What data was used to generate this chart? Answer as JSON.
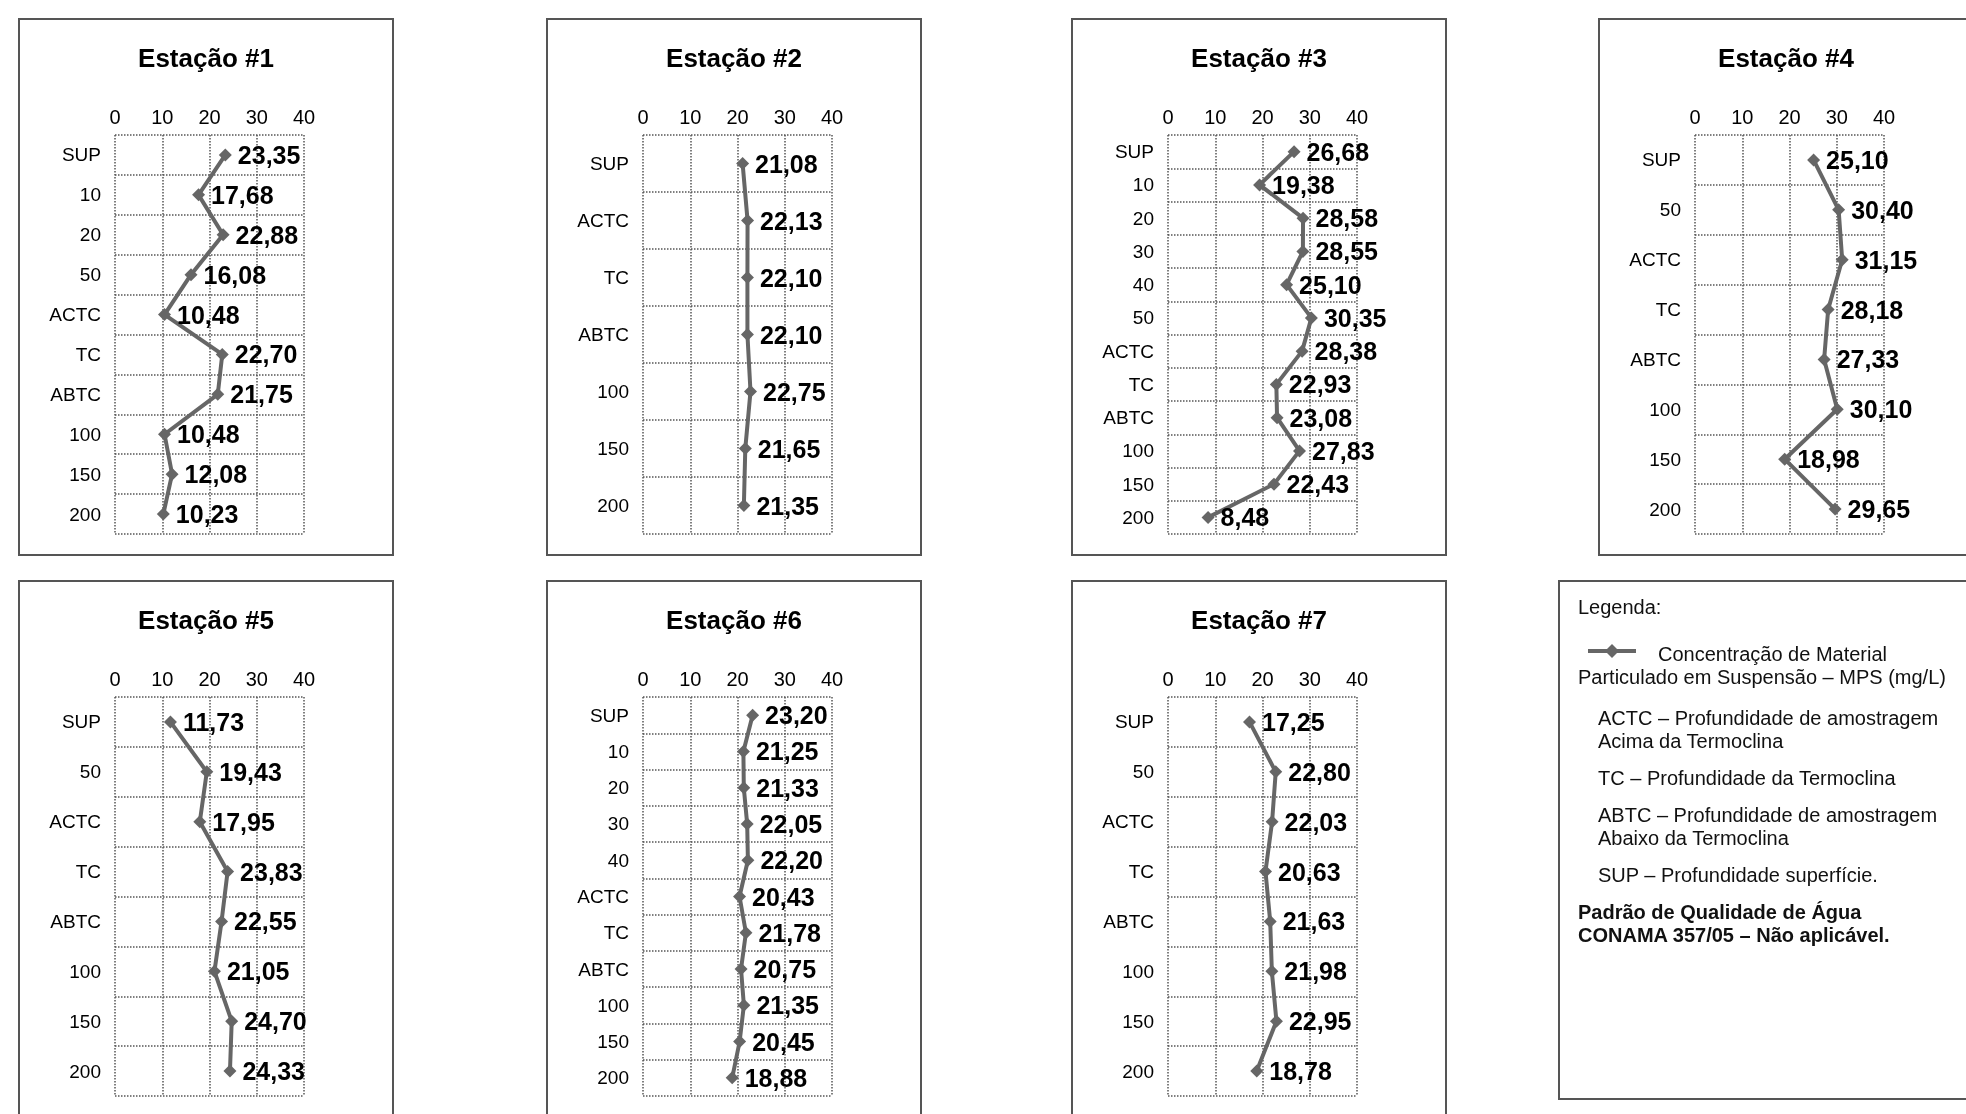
{
  "chart_data": [
    {
      "type": "line",
      "orientation": "horizontal",
      "title": "Estação #1",
      "categories": [
        "SUP",
        "10",
        "20",
        "50",
        "ACTC",
        "TC",
        "ABTC",
        "100",
        "150",
        "200"
      ],
      "values": [
        23.35,
        17.68,
        22.88,
        16.08,
        10.48,
        22.7,
        21.75,
        10.48,
        12.08,
        10.23
      ],
      "value_labels": [
        "23,35",
        "17,68",
        "22,88",
        "16,08",
        "10,48",
        "22,70",
        "21,75",
        "10,48",
        "12,08",
        "10,23"
      ],
      "color": "#666666",
      "xlim": [
        0,
        40
      ],
      "xticks": [
        0,
        10,
        20,
        30,
        40
      ],
      "grid": true,
      "marker": "diamond",
      "line_style": "solid"
    },
    {
      "type": "line",
      "orientation": "horizontal",
      "title": "Estação #2",
      "categories": [
        "SUP",
        "ACTC",
        "TC",
        "ABTC",
        "100",
        "150",
        "200"
      ],
      "values": [
        21.08,
        22.13,
        22.1,
        22.1,
        22.75,
        21.65,
        21.35
      ],
      "value_labels": [
        "21,08",
        "22,13",
        "22,10",
        "22,10",
        "22,75",
        "21,65",
        "21,35"
      ],
      "color": "#666666",
      "xlim": [
        0,
        40
      ],
      "xticks": [
        0,
        10,
        20,
        30,
        40
      ],
      "grid": true,
      "marker": "diamond",
      "line_style": "solid"
    },
    {
      "type": "line",
      "orientation": "horizontal",
      "title": "Estação #3",
      "categories": [
        "SUP",
        "10",
        "20",
        "30",
        "40",
        "50",
        "ACTC",
        "TC",
        "ABTC",
        "100",
        "150",
        "200"
      ],
      "values": [
        26.68,
        19.38,
        28.58,
        28.55,
        25.1,
        30.35,
        28.38,
        22.93,
        23.08,
        27.83,
        22.43,
        8.48
      ],
      "value_labels": [
        "26,68",
        "19,38",
        "28,58",
        "28,55",
        "25,10",
        "30,35",
        "28,38",
        "22,93",
        "23,08",
        "27,83",
        "22,43",
        "8,48"
      ],
      "color": "#666666",
      "xlim": [
        0,
        40
      ],
      "xticks": [
        0,
        10,
        20,
        30,
        40
      ],
      "grid": true,
      "marker": "diamond",
      "line_style": "solid"
    },
    {
      "type": "line",
      "orientation": "horizontal",
      "title": "Estação #4",
      "categories": [
        "SUP",
        "50",
        "ACTC",
        "TC",
        "ABTC",
        "100",
        "150",
        "200"
      ],
      "values": [
        25.1,
        30.4,
        31.15,
        28.18,
        27.33,
        30.1,
        18.98,
        29.65
      ],
      "value_labels": [
        "25,10",
        "30,40",
        "31,15",
        "28,18",
        "27,33",
        "30,10",
        "18,98",
        "29,65"
      ],
      "color": "#666666",
      "xlim": [
        0,
        40
      ],
      "xticks": [
        0,
        10,
        20,
        30,
        40
      ],
      "grid": true,
      "marker": "diamond",
      "line_style": "solid"
    },
    {
      "type": "line",
      "orientation": "horizontal",
      "title": "Estação #5",
      "categories": [
        "SUP",
        "50",
        "ACTC",
        "TC",
        "ABTC",
        "100",
        "150",
        "200"
      ],
      "values": [
        11.73,
        19.43,
        17.95,
        23.83,
        22.55,
        21.05,
        24.7,
        24.33
      ],
      "value_labels": [
        "11,73",
        "19,43",
        "17,95",
        "23,83",
        "22,55",
        "21,05",
        "24,70",
        "24,33"
      ],
      "color": "#666666",
      "xlim": [
        0,
        40
      ],
      "xticks": [
        0,
        10,
        20,
        30,
        40
      ],
      "grid": true,
      "marker": "diamond",
      "line_style": "solid"
    },
    {
      "type": "line",
      "orientation": "horizontal",
      "title": "Estação #6",
      "categories": [
        "SUP",
        "10",
        "20",
        "30",
        "40",
        "ACTC",
        "TC",
        "ABTC",
        "100",
        "150",
        "200"
      ],
      "values": [
        23.2,
        21.25,
        21.33,
        22.05,
        22.2,
        20.43,
        21.78,
        20.75,
        21.35,
        20.45,
        18.88
      ],
      "value_labels": [
        "23,20",
        "21,25",
        "21,33",
        "22,05",
        "22,20",
        "20,43",
        "21,78",
        "20,75",
        "21,35",
        "20,45",
        "18,88"
      ],
      "color": "#666666",
      "xlim": [
        0,
        40
      ],
      "xticks": [
        0,
        10,
        20,
        30,
        40
      ],
      "grid": true,
      "marker": "diamond",
      "line_style": "solid"
    },
    {
      "type": "line",
      "orientation": "horizontal",
      "title": "Estação #7",
      "categories": [
        "SUP",
        "50",
        "ACTC",
        "TC",
        "ABTC",
        "100",
        "150",
        "200"
      ],
      "values": [
        17.25,
        22.8,
        22.03,
        20.63,
        21.63,
        21.98,
        22.95,
        18.78
      ],
      "value_labels": [
        "17,25",
        "22,80",
        "22,03",
        "20,63",
        "21,63",
        "21,98",
        "22,95",
        "18,78"
      ],
      "color": "#666666",
      "xlim": [
        0,
        40
      ],
      "xticks": [
        0,
        10,
        20,
        30,
        40
      ],
      "grid": true,
      "marker": "diamond",
      "line_style": "solid"
    },
    {
      "type": "other",
      "title": "Legenda:",
      "annotations": [
        "Concentração de Material Particulado em Suspensão – MPS (mg/L)",
        "ACTC – Profundidade de amostragem Acima da Termoclina",
        "TC – Profundidade da Termoclina",
        "ABTC – Profundidade de amostragem Abaixo da Termoclina",
        "SUP – Profundidade superfície.",
        "Padrão de Qualidade de Água CONAMA 357/05 – Não aplicável."
      ]
    }
  ]
}
